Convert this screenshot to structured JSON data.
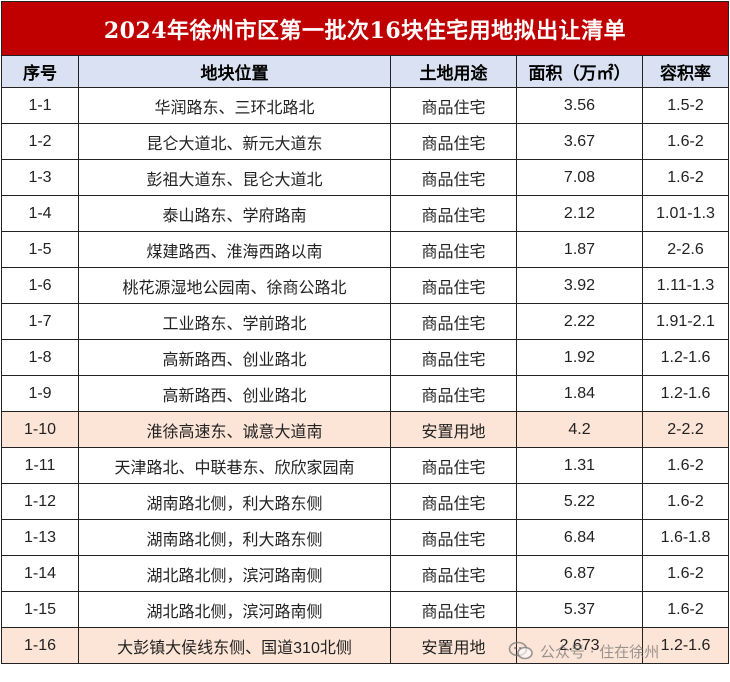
{
  "title": "2024年徐州市区第一批次16块住宅用地拟出让清单",
  "headers": {
    "no": "序号",
    "location": "地块位置",
    "use": "土地用途",
    "area": "面积（万㎡）",
    "far": "容积率"
  },
  "rows": [
    {
      "no": "1-1",
      "location": "华润路东、三环北路北",
      "use": "商品住宅",
      "area": "3.56",
      "far": "1.5-2"
    },
    {
      "no": "1-2",
      "location": "昆仑大道北、新元大道东",
      "use": "商品住宅",
      "area": "3.67",
      "far": "1.6-2"
    },
    {
      "no": "1-3",
      "location": "彭祖大道东、昆仑大道北",
      "use": "商品住宅",
      "area": "7.08",
      "far": "1.6-2"
    },
    {
      "no": "1-4",
      "location": "泰山路东、学府路南",
      "use": "商品住宅",
      "area": "2.12",
      "far": "1.01-1.3"
    },
    {
      "no": "1-5",
      "location": "煤建路西、淮海西路以南",
      "use": "商品住宅",
      "area": "1.87",
      "far": "2-2.6"
    },
    {
      "no": "1-6",
      "location": "桃花源湿地公园南、徐商公路北",
      "use": "商品住宅",
      "area": "3.92",
      "far": "1.11-1.3"
    },
    {
      "no": "1-7",
      "location": "工业路东、学前路北",
      "use": "商品住宅",
      "area": "2.22",
      "far": "1.91-2.1"
    },
    {
      "no": "1-8",
      "location": "高新路西、创业路北",
      "use": "商品住宅",
      "area": "1.92",
      "far": "1.2-1.6"
    },
    {
      "no": "1-9",
      "location": "高新路西、创业路北",
      "use": "商品住宅",
      "area": "1.84",
      "far": "1.2-1.6"
    },
    {
      "no": "1-10",
      "location": "淮徐高速东、诚意大道南",
      "use": "安置用地",
      "area": "4.2",
      "far": "2-2.2"
    },
    {
      "no": "1-11",
      "location": "天津路北、中联巷东、欣欣家园南",
      "use": "商品住宅",
      "area": "1.31",
      "far": "1.6-2"
    },
    {
      "no": "1-12",
      "location": "湖南路北侧，利大路东侧",
      "use": "商品住宅",
      "area": "5.22",
      "far": "1.6-2"
    },
    {
      "no": "1-13",
      "location": "湖南路北侧，利大路东侧",
      "use": "商品住宅",
      "area": "6.84",
      "far": "1.6-1.8"
    },
    {
      "no": "1-14",
      "location": "湖北路北侧，滨河路南侧",
      "use": "商品住宅",
      "area": "6.87",
      "far": "1.6-2"
    },
    {
      "no": "1-15",
      "location": "湖北路北侧，滨河路南侧",
      "use": "商品住宅",
      "area": "5.37",
      "far": "1.6-2"
    },
    {
      "no": "1-16",
      "location": "大彭镇大侯线东侧、国道310北侧",
      "use": "安置用地",
      "area": "2.673",
      "far": "1.2-1.6"
    }
  ],
  "colors": {
    "title_bg": "#c00000",
    "header_bg": "#d9e1f2",
    "resettlement_row_bg": "#fce4d6"
  },
  "watermark": {
    "text": "公众号 · 住在徐州",
    "icon": "wechat-logo-icon"
  }
}
